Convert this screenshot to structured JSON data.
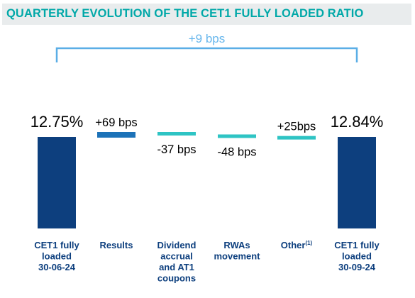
{
  "title": "QUARTERLY EVOLUTION OF THE CET1 FULLY LOADED RATIO",
  "colors": {
    "title_text": "#00a8a8",
    "title_background": "#e9eced",
    "bar_total": "#0d3f7e",
    "bar_results": "#1c72b8",
    "bar_teal": "#2ec4c4",
    "bracket": "#5aaee6",
    "bracket_label": "#66b6ec",
    "text": "#000000",
    "category_text": "#0d3f7e"
  },
  "chart_data": {
    "type": "bar",
    "subtype": "waterfall",
    "title": "QUARTERLY EVOLUTION OF THE CET1 FULLY LOADED RATIO",
    "unit": "%",
    "categories": [
      "CET1 fully\nloaded\n30-06-24",
      "Results",
      "Dividend\naccrual\nand AT1\ncoupons",
      "RWAs\nmovement",
      "Other(1)",
      "CET1 fully\nloaded\n30-09-24"
    ],
    "bars": [
      {
        "kind": "total",
        "value": 12.75,
        "label": "12.75%"
      },
      {
        "kind": "change",
        "value": 0.69,
        "label": "+69 bps"
      },
      {
        "kind": "change",
        "value": -0.37,
        "label": "-37 bps"
      },
      {
        "kind": "change",
        "value": -0.48,
        "label": "-48 bps"
      },
      {
        "kind": "change",
        "value": 0.25,
        "label": "+25bps"
      },
      {
        "kind": "total",
        "value": 12.84,
        "label": "12.84%"
      }
    ],
    "annotation": {
      "label": "+9 bps",
      "from": "CET1 fully\nloaded\n30-06-24",
      "to": "CET1 fully\nloaded\n30-09-24"
    },
    "axes_visible": false,
    "grid": false,
    "legend": "none"
  }
}
